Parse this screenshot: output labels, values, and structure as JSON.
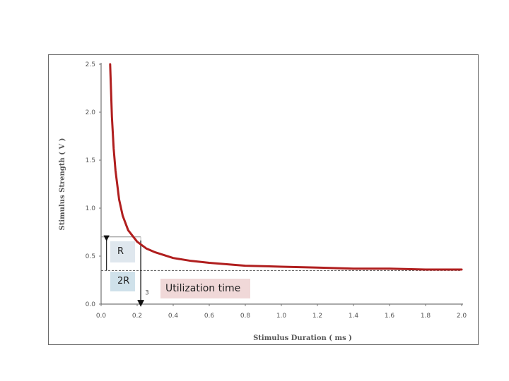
{
  "chart_data": {
    "type": "line",
    "xlabel": "Stimulus Duration ( ms )",
    "ylabel": "Stimulus Strength ( V )",
    "xlim": [
      0,
      2.0
    ],
    "ylim": [
      0,
      2.5
    ],
    "x_ticks": [
      "0.0",
      "0.2",
      "0.4",
      "0.6",
      "0.8",
      "1.0",
      "1.2",
      "1.4",
      "1.6",
      "1.8",
      "2.0"
    ],
    "y_ticks": [
      "0.0",
      "0.5",
      "1.0",
      "1.5",
      "2.0",
      "2.5"
    ],
    "series": [
      {
        "color": "#b01e1e",
        "x": [
          0.05,
          0.06,
          0.07,
          0.08,
          0.1,
          0.12,
          0.15,
          0.2,
          0.25,
          0.3,
          0.4,
          0.5,
          0.6,
          0.8,
          1.0,
          1.2,
          1.4,
          1.6,
          1.8,
          2.0
        ],
        "y": [
          2.5,
          1.95,
          1.62,
          1.39,
          1.09,
          0.92,
          0.77,
          0.65,
          0.58,
          0.54,
          0.48,
          0.45,
          0.43,
          0.4,
          0.39,
          0.38,
          0.37,
          0.37,
          0.36,
          0.36
        ]
      }
    ],
    "rheobase": 0.35,
    "twice_rheobase": 0.7,
    "chronaxie": 0.22,
    "annotations": {
      "r_label": "R",
      "r2_label": "2R",
      "utilization_label": "Utilization time",
      "chronaxie_label": "3"
    }
  }
}
